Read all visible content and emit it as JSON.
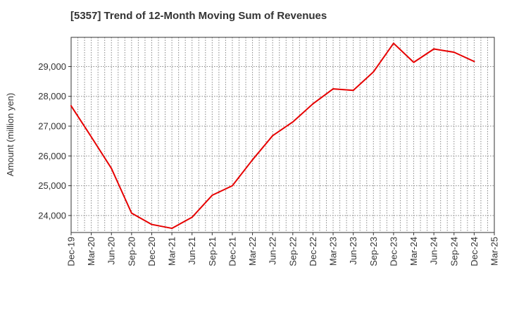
{
  "chart_data": {
    "type": "line",
    "title": "[5357]  Trend of 12-Month Moving Sum of Revenues",
    "ylabel": "Amount (million yen)",
    "xlabel": "",
    "grid": true,
    "legend": "none",
    "x_ticks": [
      "Dec-19",
      "Mar-20",
      "Jun-20",
      "Sep-20",
      "Dec-20",
      "Mar-21",
      "Jun-21",
      "Sep-21",
      "Dec-21",
      "Mar-22",
      "Jun-22",
      "Sep-22",
      "Dec-22",
      "Mar-23",
      "Jun-23",
      "Sep-23",
      "Dec-23",
      "Mar-24",
      "Jun-24",
      "Sep-24",
      "Dec-24",
      "Mar-25"
    ],
    "y_ticks": [
      24000,
      25000,
      26000,
      27000,
      28000,
      29000
    ],
    "y_tick_labels": [
      "24,000",
      "25,000",
      "26,000",
      "27,000",
      "28,000",
      "29,000"
    ],
    "ylim": [
      23430,
      29980
    ],
    "series": [
      {
        "color": "#e60000",
        "x": [
          "Dec-19",
          "Mar-20",
          "Jun-20",
          "Sep-20",
          "Dec-20",
          "Mar-21",
          "Jun-21",
          "Sep-21",
          "Dec-21",
          "Mar-22",
          "Jun-22",
          "Sep-22",
          "Dec-22",
          "Mar-23",
          "Jun-23",
          "Sep-23",
          "Dec-23",
          "Mar-24",
          "Jun-24",
          "Sep-24",
          "Dec-24"
        ],
        "values": [
          27680,
          26640,
          25580,
          24080,
          23700,
          23570,
          23940,
          24680,
          25000,
          25870,
          26680,
          27140,
          27750,
          28250,
          28200,
          28820,
          29780,
          29140,
          29590,
          29480,
          29170
        ]
      }
    ]
  }
}
